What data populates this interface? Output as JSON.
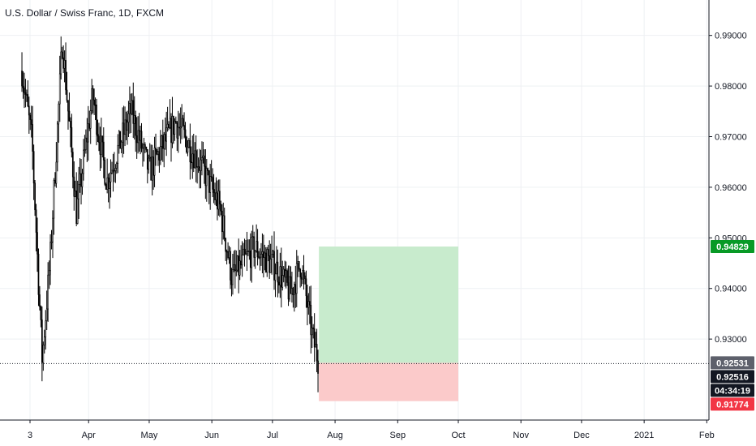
{
  "chart_data": {
    "type": "candlestick",
    "title": "U.S. Dollar / Swiss Franc, 1D, FXCM",
    "x_tick_labels": [
      "3",
      "Apr",
      "May",
      "Jun",
      "Jul",
      "Aug",
      "Sep",
      "Oct",
      "Nov",
      "Dec",
      "2021",
      "Feb"
    ],
    "y_tick_labels": [
      "0.99000",
      "0.98000",
      "0.97000",
      "0.96000",
      "0.95000",
      "0.94000",
      "0.93000"
    ],
    "y_range": [
      0.914,
      0.997
    ],
    "grid": true,
    "price_path_anchors": [
      {
        "date": "2020-02-28",
        "close": 0.983
      },
      {
        "date": "2020-03-04",
        "close": 0.969
      },
      {
        "date": "2020-03-09",
        "close": 0.926
      },
      {
        "date": "2020-03-13",
        "close": 0.946
      },
      {
        "date": "2020-03-19",
        "close": 0.989
      },
      {
        "date": "2020-03-26",
        "close": 0.955
      },
      {
        "date": "2020-04-03",
        "close": 0.978
      },
      {
        "date": "2020-04-10",
        "close": 0.961
      },
      {
        "date": "2020-04-22",
        "close": 0.975
      },
      {
        "date": "2020-05-01",
        "close": 0.963
      },
      {
        "date": "2020-05-14",
        "close": 0.973
      },
      {
        "date": "2020-05-27",
        "close": 0.964
      },
      {
        "date": "2020-06-05",
        "close": 0.956
      },
      {
        "date": "2020-06-11",
        "close": 0.942
      },
      {
        "date": "2020-06-22",
        "close": 0.948
      },
      {
        "date": "2020-07-03",
        "close": 0.944
      },
      {
        "date": "2020-07-10",
        "close": 0.939
      },
      {
        "date": "2020-07-15",
        "close": 0.945
      },
      {
        "date": "2020-07-21",
        "close": 0.93
      },
      {
        "date": "2020-07-24",
        "close": 0.9253
      }
    ],
    "position_tool": {
      "type": "long",
      "entry": 0.92531,
      "take_profit": 0.94829,
      "stop_loss": 0.91774,
      "start_date": "2020-07-24",
      "end_date": "2020-10-01",
      "profit_color": "#c8ebcd",
      "loss_color": "#fbcaca"
    },
    "price_tags": [
      {
        "label": "0.94829",
        "value": 0.94829,
        "bg": "#089a26",
        "fg": "#ffffff"
      },
      {
        "label": "0.92531",
        "value": 0.92531,
        "bg": "#5d606b",
        "fg": "#ffffff"
      },
      {
        "label": "0.92516",
        "value": 0.92516,
        "bg": "#131722",
        "fg": "#ffffff"
      },
      {
        "label": "04:34:19",
        "value": null,
        "bg": "#131722",
        "fg": "#ffffff"
      },
      {
        "label": "0.91774",
        "value": 0.91774,
        "bg": "#f23645",
        "fg": "#ffffff"
      }
    ],
    "current_price": 0.92516,
    "candle_color": "#000000"
  }
}
